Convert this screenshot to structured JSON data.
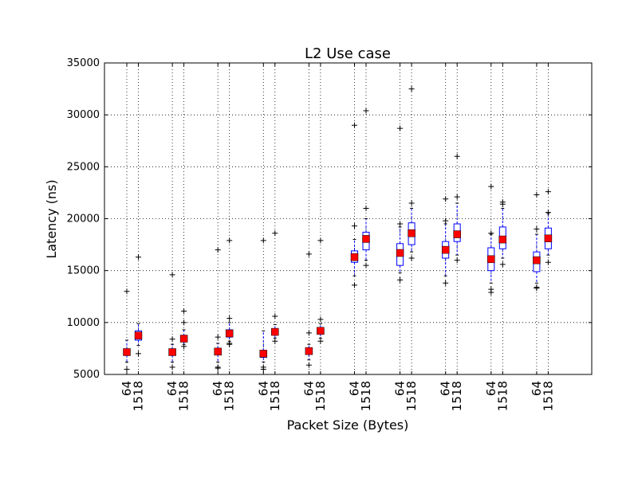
{
  "chart_data": {
    "type": "box",
    "title": "L2 Use case",
    "xlabel": "Packet Size (Bytes)",
    "ylabel": "Latency (ns)",
    "ylim": [
      5000,
      35000
    ],
    "yticks": [
      5000,
      10000,
      15000,
      20000,
      25000,
      30000,
      35000
    ],
    "ytick_labels": [
      "5000",
      "10000",
      "15000",
      "20000",
      "25000",
      "30000",
      "35000"
    ],
    "xtick_labels": [
      "64",
      "1518",
      "64",
      "1518",
      "64",
      "1518",
      "64",
      "1518",
      "64",
      "1518",
      "64",
      "1518",
      "64",
      "1518",
      "64",
      "1518",
      "64",
      "1518",
      "64",
      "1518"
    ],
    "grid": true,
    "grid_style": "dotted",
    "box_color": "#0000ff",
    "mean_marker_color": "#ff0000",
    "boxes": [
      {
        "label": "64",
        "whisker_low": 6200,
        "q1": 6850,
        "median": 7100,
        "q3": 7400,
        "whisker_high": 8300,
        "mean": 7150,
        "fliers": [
          5500,
          13000
        ]
      },
      {
        "label": "1518",
        "whisker_low": 7800,
        "q1": 8300,
        "median": 8750,
        "q3": 9200,
        "whisker_high": 9900,
        "mean": 8750,
        "fliers": [
          7000,
          16300
        ]
      },
      {
        "label": "64",
        "whisker_low": 6200,
        "q1": 6850,
        "median": 7100,
        "q3": 7400,
        "whisker_high": 7900,
        "mean": 7150,
        "fliers": [
          5700,
          8400,
          14600
        ]
      },
      {
        "label": "1518",
        "whisker_low": 7900,
        "q1": 8150,
        "median": 8450,
        "q3": 8700,
        "whisker_high": 9300,
        "mean": 8450,
        "fliers": [
          7700,
          10000,
          11100
        ]
      },
      {
        "label": "64",
        "whisker_low": 6200,
        "q1": 6900,
        "median": 7200,
        "q3": 7500,
        "whisker_high": 8000,
        "mean": 7200,
        "fliers": [
          5600,
          5700,
          8600,
          17000
        ]
      },
      {
        "label": "1518",
        "whisker_low": 8200,
        "q1": 8600,
        "median": 8950,
        "q3": 9300,
        "whisker_high": 10000,
        "mean": 8950,
        "fliers": [
          7900,
          8000,
          10400,
          17900
        ]
      },
      {
        "label": "64",
        "whisker_low": 6200,
        "q1": 6650,
        "median": 7000,
        "q3": 7300,
        "whisker_high": 9200,
        "mean": 7000,
        "fliers": [
          5500,
          5700,
          17900
        ]
      },
      {
        "label": "1518",
        "whisker_low": 8500,
        "q1": 8800,
        "median": 9100,
        "q3": 9400,
        "whisker_high": 9800,
        "mean": 9100,
        "fliers": [
          8200,
          10600,
          18600
        ]
      },
      {
        "label": "64",
        "whisker_low": 6400,
        "q1": 6950,
        "median": 7250,
        "q3": 7550,
        "whisker_high": 7900,
        "mean": 7250,
        "fliers": [
          5900,
          9000,
          16600
        ]
      },
      {
        "label": "1518",
        "whisker_low": 8500,
        "q1": 8900,
        "median": 9200,
        "q3": 9500,
        "whisker_high": 9900,
        "mean": 9200,
        "fliers": [
          8200,
          10300,
          17900
        ]
      },
      {
        "label": "64",
        "whisker_low": 14500,
        "q1": 15800,
        "median": 16300,
        "q3": 16900,
        "whisker_high": 18000,
        "mean": 16300,
        "fliers": [
          13600,
          19300,
          29000
        ]
      },
      {
        "label": "1518",
        "whisker_low": 16000,
        "q1": 17000,
        "median": 18000,
        "q3": 18700,
        "whisker_high": 20000,
        "mean": 18050,
        "fliers": [
          15500,
          21000,
          30400
        ]
      },
      {
        "label": "64",
        "whisker_low": 14800,
        "q1": 15500,
        "median": 16700,
        "q3": 17600,
        "whisker_high": 19200,
        "mean": 16700,
        "fliers": [
          14100,
          19500,
          28700
        ]
      },
      {
        "label": "1518",
        "whisker_low": 16800,
        "q1": 17500,
        "median": 18600,
        "q3": 19600,
        "whisker_high": 21000,
        "mean": 18600,
        "fliers": [
          16200,
          21500,
          32500
        ]
      },
      {
        "label": "64",
        "whisker_low": 14500,
        "q1": 16200,
        "median": 17000,
        "q3": 17800,
        "whisker_high": 19500,
        "mean": 17000,
        "fliers": [
          13800,
          19800,
          21900
        ]
      },
      {
        "label": "1518",
        "whisker_low": 16500,
        "q1": 17800,
        "median": 18500,
        "q3": 19500,
        "whisker_high": 21500,
        "mean": 18500,
        "fliers": [
          16000,
          22100,
          26000
        ]
      },
      {
        "label": "64",
        "whisker_low": 13800,
        "q1": 15000,
        "median": 16100,
        "q3": 17200,
        "whisker_high": 18500,
        "mean": 16100,
        "fliers": [
          12900,
          13200,
          18600,
          23100
        ]
      },
      {
        "label": "1518",
        "whisker_low": 16200,
        "q1": 17100,
        "median": 18000,
        "q3": 19200,
        "whisker_high": 21000,
        "mean": 18000,
        "fliers": [
          15600,
          21400,
          21600
        ]
      },
      {
        "label": "64",
        "whisker_low": 13800,
        "q1": 14900,
        "median": 16000,
        "q3": 16800,
        "whisker_high": 18500,
        "mean": 16000,
        "fliers": [
          13300,
          13400,
          19000,
          22300
        ]
      },
      {
        "label": "1518",
        "whisker_low": 16500,
        "q1": 17100,
        "median": 18100,
        "q3": 19100,
        "whisker_high": 20500,
        "mean": 18100,
        "fliers": [
          15800,
          20600,
          22600
        ]
      }
    ]
  }
}
